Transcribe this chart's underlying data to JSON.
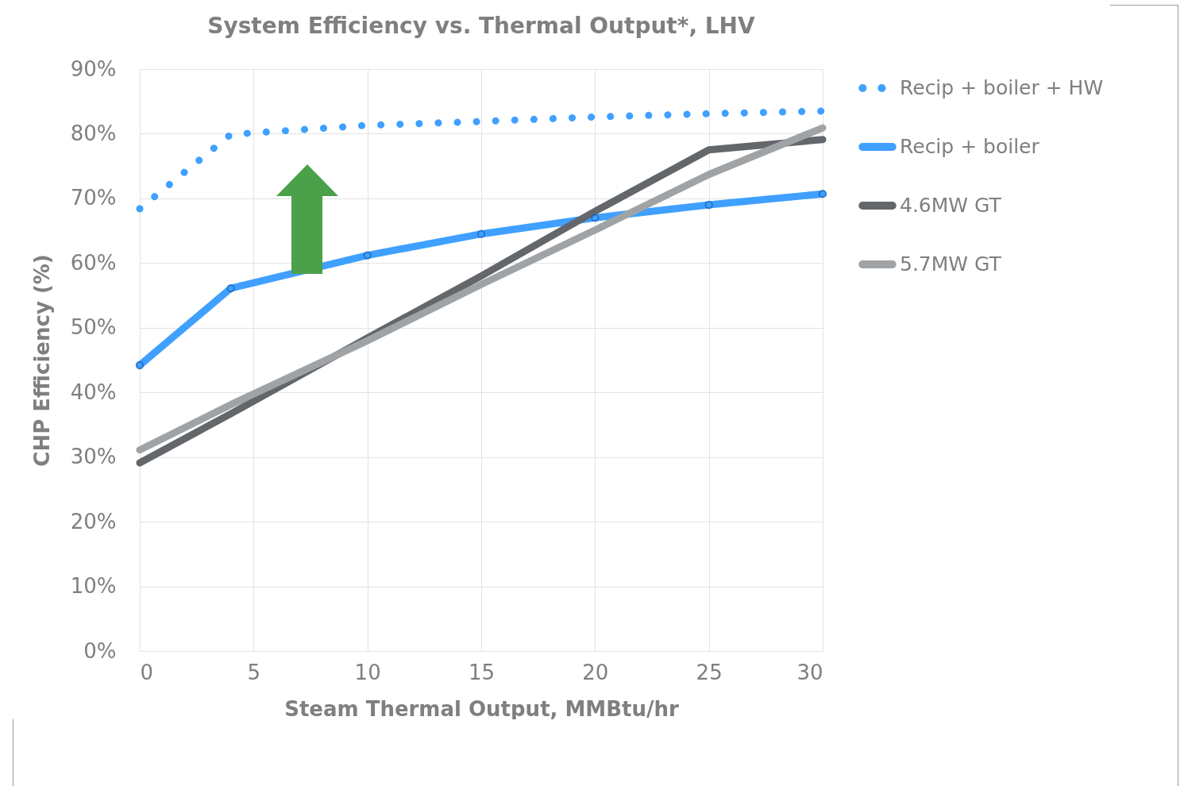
{
  "chart_data": {
    "type": "line",
    "title": "System Efficiency vs. Thermal Output*, LHV",
    "xlabel": "Steam Thermal Output, MMBtu/hr",
    "ylabel": "CHP Efficiency (%)",
    "x": [
      0,
      4,
      10,
      15,
      20,
      25,
      30
    ],
    "series": [
      {
        "name": "Recip  + boiler + HW",
        "color": "#3fa0ff",
        "line_style": "dotted",
        "values": [
          68.4,
          79.9,
          81.3,
          81.9,
          82.6,
          83.1,
          83.5
        ]
      },
      {
        "name": "Recip + boiler",
        "color": "#3fa0ff",
        "marker": "circle",
        "values": [
          44.2,
          56.1,
          61.2,
          64.5,
          67.0,
          69.0,
          70.7
        ]
      },
      {
        "name": "4.6MW GT",
        "color": "#63666a",
        "values": [
          29.1,
          36.7,
          48.4,
          58.0,
          68.0,
          77.5,
          79.1
        ]
      },
      {
        "name": "5.7MW GT",
        "color": "#a0a3a6",
        "values": [
          31.1,
          38.1,
          48.0,
          56.7,
          65.1,
          73.7,
          80.9
        ]
      }
    ],
    "xlim": [
      0,
      30
    ],
    "xticks": [
      0,
      5,
      10,
      15,
      20,
      25,
      30
    ],
    "ylim": [
      0,
      90
    ],
    "yticks": [
      {
        "value": 0,
        "label": "0%"
      },
      {
        "value": 10,
        "label": "10%"
      },
      {
        "value": 20,
        "label": "20%"
      },
      {
        "value": 30,
        "label": "30%"
      },
      {
        "value": 40,
        "label": "40%"
      },
      {
        "value": 50,
        "label": "50%"
      },
      {
        "value": 60,
        "label": "60%"
      },
      {
        "value": 70,
        "label": "70%"
      },
      {
        "value": 80,
        "label": "80%"
      },
      {
        "value": 90,
        "label": "90%"
      }
    ],
    "grid": true,
    "legend": "right",
    "line_style": "solid"
  }
}
